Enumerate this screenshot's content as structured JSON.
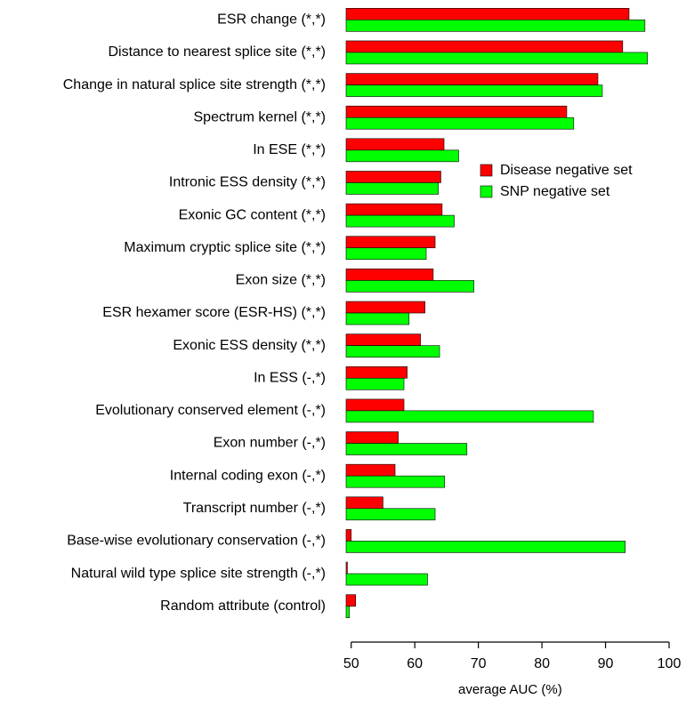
{
  "chart_data": {
    "type": "barh",
    "xlabel": "average AUC (%)",
    "categories": [
      "ESR change (*,*)",
      "Distance to nearest splice site (*,*)",
      "Change in natural splice site strength (*,*)",
      "Spectrum kernel (*,*)",
      "In ESE (*,*)",
      "Intronic ESS density (*,*)",
      "Exonic GC content (*,*)",
      "Maximum cryptic splice site (*,*)",
      "Exon size (*,*)",
      "ESR hexamer score (ESR-HS) (*,*)",
      "Exonic ESS density (*,*)",
      "In ESS (-,*)",
      "Evolutionary conserved element (-,*)",
      "Exon number (-,*)",
      "Internal coding exon (-,*)",
      "Transcript number (-,*)",
      "Base-wise evolutionary conservation (-,*)",
      "Natural wild type splice site strength (-,*)",
      "Random attribute (control)"
    ],
    "series": [
      {
        "name": "Disease negative set",
        "color": "#ff0000",
        "values": [
          93.7,
          92.7,
          88.8,
          83.9,
          64.6,
          64.1,
          64.3,
          63.2,
          62.9,
          61.6,
          60.9,
          58.8,
          58.3,
          57.4,
          56.9,
          55.0,
          50.0,
          49.4,
          50.7
        ]
      },
      {
        "name": "SNP negative set",
        "color": "#00ff00",
        "values": [
          96.2,
          96.6,
          89.5,
          85.0,
          66.9,
          63.7,
          66.2,
          61.8,
          69.3,
          59.1,
          63.9,
          58.3,
          88.1,
          68.2,
          64.7,
          63.2,
          93.1,
          62.0,
          49.7
        ]
      }
    ],
    "xlim": [
      49.2,
      100
    ],
    "xticks": [
      50,
      60,
      70,
      80,
      90,
      100
    ],
    "legend": "right"
  }
}
